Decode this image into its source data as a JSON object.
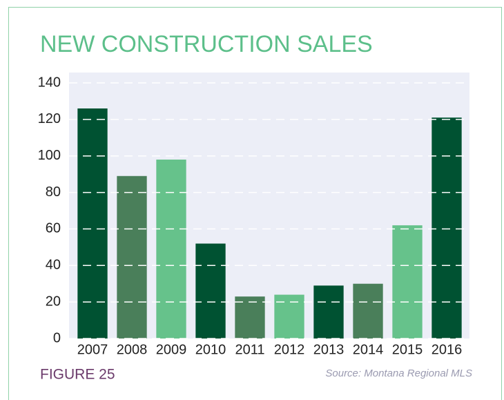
{
  "chart_data": {
    "type": "bar",
    "title": "NEW CONSTRUCTION SALES",
    "categories": [
      "2007",
      "2008",
      "2009",
      "2010",
      "2011",
      "2012",
      "2013",
      "2014",
      "2015",
      "2016"
    ],
    "values": [
      126,
      89,
      98,
      52,
      23,
      24,
      29,
      30,
      62,
      121
    ],
    "colors": [
      "#005232",
      "#4a7f5a",
      "#66c28b",
      "#005232",
      "#4a7f5a",
      "#66c28b",
      "#005232",
      "#4a7f5a",
      "#66c28b",
      "#005232"
    ],
    "ylim": [
      0,
      140
    ],
    "yticks": [
      0,
      20,
      40,
      60,
      80,
      100,
      120,
      140
    ],
    "grid": true,
    "figure_label": "FIGURE 25",
    "source": "Source: Montana Regional MLS"
  }
}
